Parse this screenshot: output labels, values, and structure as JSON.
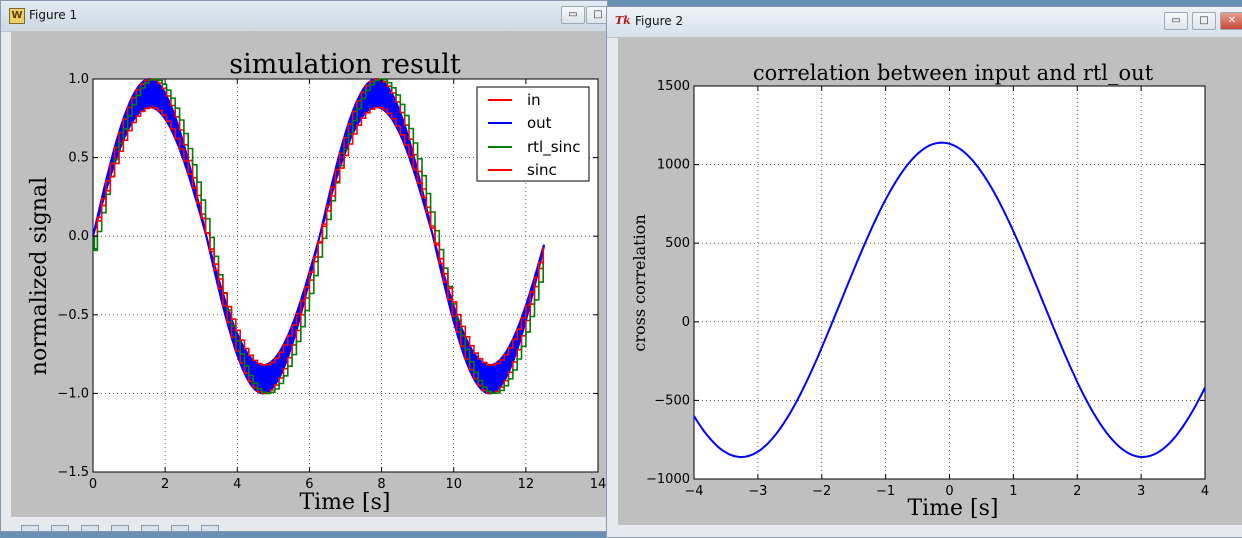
{
  "window1": {
    "title": "Figure 1",
    "minimize_symbol": "▭",
    "maximize_symbol": "□",
    "plot": {
      "title": "simulation result",
      "xlabel": "Time [s]",
      "ylabel": "normalized signal",
      "xticks": [
        "0",
        "2",
        "4",
        "6",
        "8",
        "10",
        "12",
        "14"
      ],
      "yticks": [
        "1.0",
        "0.5",
        "0.0",
        "−0.5",
        "−1.0",
        "−1.5"
      ],
      "legend": [
        "in",
        "out",
        "rtl_sinc",
        "sinc"
      ]
    },
    "toolbar_icons": [
      "home-icon",
      "back-icon",
      "forward-icon",
      "pan-icon",
      "zoom-icon",
      "subplots-icon",
      "save-icon"
    ]
  },
  "window2": {
    "title": "Figure 2",
    "minimize_symbol": "▭",
    "maximize_symbol": "□",
    "close_symbol": "✕",
    "plot": {
      "title": "correlation between input and rtl_out",
      "xlabel": "Time [s]",
      "ylabel": "cross correlation",
      "xticks": [
        "−4",
        "−3",
        "−2",
        "−1",
        "0",
        "1",
        "2",
        "3",
        "4"
      ],
      "yticks": [
        "1500",
        "1000",
        "500",
        "0",
        "−500",
        "−1000"
      ]
    }
  },
  "colors": {
    "in": "#ff0000",
    "out": "#0000ff",
    "rtl_sinc": "#008000",
    "sinc": "#ff0000",
    "correlation": "#0000ff",
    "figure_background": "#bfbfbf"
  },
  "chart_data": [
    {
      "type": "line",
      "title": "simulation result",
      "xlabel": "Time [s]",
      "ylabel": "normalized signal",
      "xlim": [
        0,
        14
      ],
      "ylim": [
        -1.5,
        1.0
      ],
      "grid": true,
      "legend_position": "top-right",
      "series": [
        {
          "name": "in",
          "x": [
            0,
            1.57,
            3.14,
            4.71,
            6.28,
            7.85,
            9.42,
            11.0,
            12.5
          ],
          "y": [
            0.0,
            1.0,
            0.0,
            -1.0,
            0.0,
            1.0,
            0.0,
            -1.0,
            -0.07
          ]
        },
        {
          "name": "out",
          "x": [
            0,
            1.57,
            3.14,
            4.71,
            6.28,
            7.85,
            9.42,
            11.0,
            12.5
          ],
          "y": [
            0.0,
            0.9,
            0.0,
            -0.9,
            0.0,
            0.9,
            0.0,
            -0.9,
            -0.07
          ]
        },
        {
          "name": "rtl_sinc",
          "x": [
            0,
            1.6,
            3.2,
            4.8,
            6.4,
            8.0,
            9.6,
            11.1,
            12.5
          ],
          "y": [
            -0.08,
            1.0,
            0.0,
            -1.0,
            0.0,
            1.0,
            0.0,
            -1.0,
            -0.07
          ]
        },
        {
          "name": "sinc",
          "x": [
            0,
            1.6,
            3.2,
            4.8,
            6.4,
            8.0,
            9.6,
            11.1,
            12.5
          ],
          "y": [
            0.0,
            0.82,
            0.0,
            -0.82,
            0.0,
            0.82,
            0.0,
            -0.82,
            -0.07
          ]
        }
      ]
    },
    {
      "type": "line",
      "title": "correlation between input and rtl_out",
      "xlabel": "Time [s]",
      "ylabel": "cross correlation",
      "xlim": [
        -4,
        4
      ],
      "ylim": [
        -1000,
        1500
      ],
      "grid": true,
      "series": [
        {
          "x": [
            -4,
            -3.25,
            -2,
            -1,
            -0.12,
            1,
            2,
            3.0,
            4
          ],
          "y": [
            -650,
            -860,
            -220,
            800,
            1140,
            750,
            -250,
            -860,
            -500
          ]
        }
      ]
    }
  ]
}
